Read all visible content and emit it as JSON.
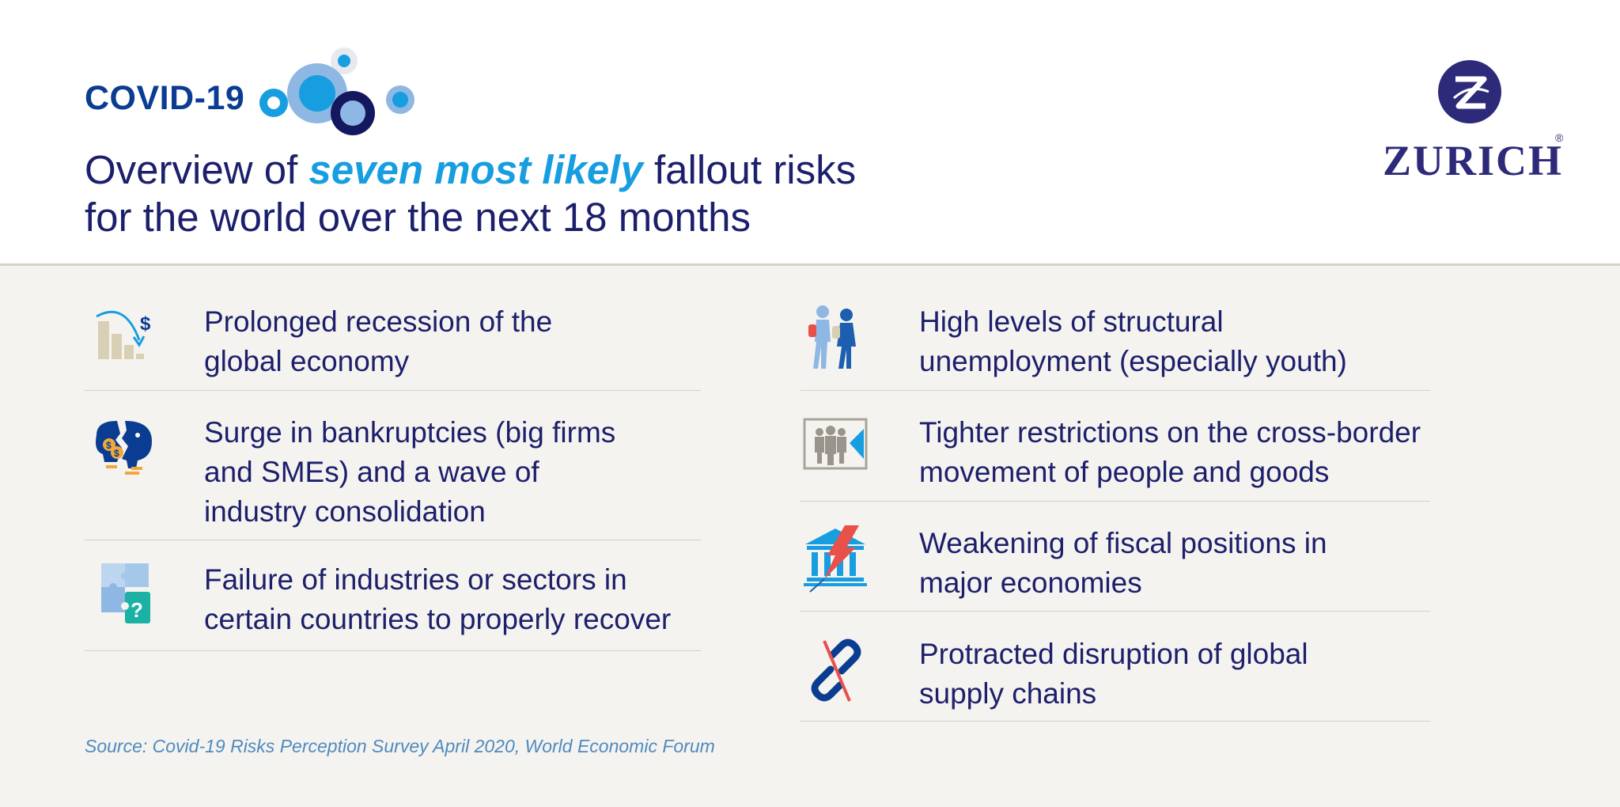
{
  "header": {
    "tag": "COVID-19",
    "headline_pre": "Overview of ",
    "headline_em": "seven most likely",
    "headline_post": " fallout risks",
    "headline_line2": "for the world over the next 18 months",
    "logo_text": "ZURICH",
    "logo_registered": "®"
  },
  "risks": {
    "left": [
      {
        "line1": "Prolonged recession of the",
        "line2": "global economy",
        "icon": "recession-chart-icon"
      },
      {
        "line1": "Surge in bankruptcies (big firms",
        "line2": "and SMEs) and a wave of",
        "line3": "industry consolidation",
        "icon": "broken-piggy-bank-icon"
      },
      {
        "line1": "Failure of industries or sectors in",
        "line2": "certain countries to properly recover",
        "icon": "puzzle-question-icon"
      }
    ],
    "right": [
      {
        "line1": "High levels of structural",
        "line2": "unemployment (especially youth)",
        "icon": "youth-walking-icon"
      },
      {
        "line1": "Tighter restrictions on the cross-border",
        "line2": "movement of people and goods",
        "icon": "border-people-icon"
      },
      {
        "line1": "Weakening of fiscal positions in",
        "line2": "major economies",
        "icon": "bank-lightning-icon"
      },
      {
        "line1": "Protracted disruption of global",
        "line2": "supply chains",
        "icon": "broken-chain-icon"
      }
    ]
  },
  "source": "Source: Covid-19 Risks Perception Survey April 2020, World Economic Forum",
  "colors": {
    "navy": "#1c1f6b",
    "accent_blue": "#169ee0",
    "brand_blue": "#0a3d91",
    "background": "#f5f3ef"
  }
}
